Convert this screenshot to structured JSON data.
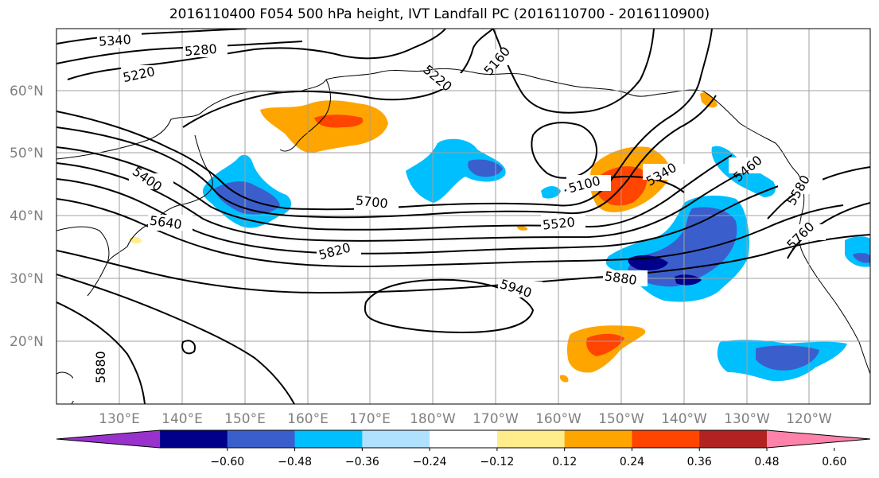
{
  "title": "2016110400 F054 500 hPa height, IVT Landfall PC (2016110700 - 2016110900)",
  "lat_labels": [
    "60°N",
    "50°N",
    "40°N",
    "30°N",
    "20°N"
  ],
  "lon_labels": [
    "130°E",
    "140°E",
    "150°E",
    "160°E",
    "170°E",
    "180°W",
    "170°W",
    "160°W",
    "150°W",
    "140°W",
    "130°W",
    "120°W"
  ],
  "contour_labels": [
    "5340",
    "5280",
    "5220",
    "5160",
    "5220",
    "5400",
    "5640",
    "5700",
    "5820",
    "5940",
    "5880",
    "5100",
    "5340",
    "5460",
    "5580",
    "5520",
    "5760",
    "5880"
  ],
  "colorbar": {
    "ticks": [
      "−0.60",
      "−0.48",
      "−0.36",
      "−0.24",
      "−0.12",
      "0.12",
      "0.24",
      "0.36",
      "0.48",
      "0.60"
    ],
    "colors": [
      "#9932cc",
      "#00008b",
      "#3a5fcd",
      "#00bfff",
      "#b0e2ff",
      "#ffffff",
      "#ffec8b",
      "#ffa500",
      "#ff4500",
      "#b22222",
      "#ff82ab"
    ]
  }
}
